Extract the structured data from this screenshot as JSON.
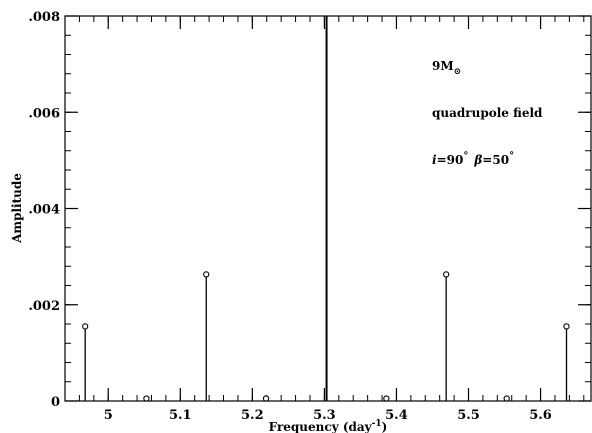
{
  "chart_data": {
    "type": "stem",
    "xlabel": "Frequency (day",
    "xlabel_superscript": "-1",
    "xlabel_close": ")",
    "ylabel": "Amplitude",
    "xlim": [
      4.94,
      5.67
    ],
    "ylim": [
      0,
      0.008
    ],
    "x_ticks": [
      {
        "value": 5.0,
        "label": "5"
      },
      {
        "value": 5.1,
        "label": "5.1"
      },
      {
        "value": 5.2,
        "label": "5.2"
      },
      {
        "value": 5.3,
        "label": "5.3"
      },
      {
        "value": 5.4,
        "label": "5.4"
      },
      {
        "value": 5.5,
        "label": "5.5"
      },
      {
        "value": 5.6,
        "label": "5.6"
      }
    ],
    "x_minor_step": 0.02,
    "y_ticks": [
      {
        "value": 0,
        "label": "0"
      },
      {
        "value": 0.002,
        "label": ".002"
      },
      {
        "value": 0.004,
        "label": ".004"
      },
      {
        "value": 0.006,
        "label": ".006"
      },
      {
        "value": 0.008,
        "label": ".008"
      }
    ],
    "y_minor_step": 0.0004,
    "grid": false,
    "points": [
      {
        "x": 4.968,
        "y": 0.00155
      },
      {
        "x": 5.053,
        "y": 0.0
      },
      {
        "x": 5.136,
        "y": 0.00263
      },
      {
        "x": 5.219,
        "y": 3e-05
      },
      {
        "x": 5.303,
        "y": 0.008,
        "clipped": true
      },
      {
        "x": 5.386,
        "y": 3e-05
      },
      {
        "x": 5.469,
        "y": 0.00263
      },
      {
        "x": 5.553,
        "y": 0.0
      },
      {
        "x": 5.636,
        "y": 0.00155
      }
    ],
    "annotations": {
      "mass": "9M",
      "mass_symbol": "⊙",
      "field": "quadrupole  field",
      "inclination_symbol": "i",
      "inclination_value": "=90",
      "beta_symbol": "β",
      "beta_value": "=50",
      "degree": "°"
    }
  }
}
